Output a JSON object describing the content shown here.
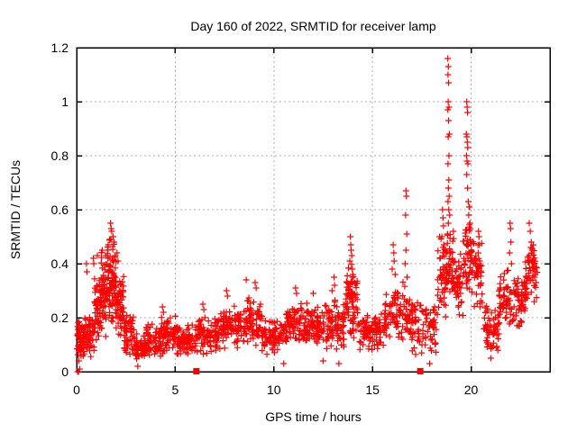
{
  "chart_data": {
    "type": "scatter",
    "title": "Day 160 of 2022, SRMTID for receiver lamp",
    "xlabel": "GPS time / hours",
    "ylabel": "SRMTID / TECUs",
    "xlim": [
      0,
      24
    ],
    "ylim": [
      0,
      1.2
    ],
    "xticks": {
      "values": [
        0,
        5,
        10,
        15,
        20
      ],
      "labels": [
        "0",
        "5",
        "10",
        "15",
        "20"
      ]
    },
    "yticks": {
      "values": [
        0,
        0.2,
        0.4,
        0.6,
        0.8,
        1.0,
        1.2
      ],
      "labels": [
        "0",
        "0.2",
        "0.4",
        "0.6",
        "0.8",
        "1",
        "1.2"
      ]
    },
    "grid": true,
    "legend": "none",
    "marker": "plus",
    "marker_size": 7,
    "marker_color": "#ff0000",
    "grid_color": "#b0b0b0",
    "border_color": "#000000",
    "seed": 160,
    "bands_comment": "dense noise bands estimated from pixels: [t_start,t_end,n_points,y_min,y_max]",
    "bands": [
      [
        0.02,
        0.35,
        50,
        0.02,
        0.22
      ],
      [
        0.35,
        0.9,
        60,
        0.05,
        0.22
      ],
      [
        0.9,
        1.2,
        45,
        0.1,
        0.38
      ],
      [
        1.2,
        1.5,
        55,
        0.12,
        0.46
      ],
      [
        1.5,
        2.0,
        90,
        0.15,
        0.5
      ],
      [
        2.0,
        2.4,
        55,
        0.12,
        0.38
      ],
      [
        2.4,
        2.9,
        50,
        0.06,
        0.24
      ],
      [
        2.9,
        3.5,
        55,
        0.03,
        0.15
      ],
      [
        3.5,
        4.3,
        70,
        0.05,
        0.19
      ],
      [
        4.3,
        5.1,
        70,
        0.06,
        0.21
      ],
      [
        5.1,
        6.0,
        75,
        0.05,
        0.18
      ],
      [
        6.0,
        7.2,
        90,
        0.06,
        0.21
      ],
      [
        7.2,
        8.3,
        85,
        0.08,
        0.25
      ],
      [
        8.3,
        9.4,
        85,
        0.09,
        0.29
      ],
      [
        9.4,
        10.6,
        90,
        0.06,
        0.2
      ],
      [
        10.6,
        11.6,
        80,
        0.08,
        0.26
      ],
      [
        11.6,
        12.6,
        80,
        0.08,
        0.26
      ],
      [
        12.6,
        13.6,
        80,
        0.07,
        0.28
      ],
      [
        13.6,
        14.25,
        70,
        0.12,
        0.42
      ],
      [
        14.25,
        15.6,
        90,
        0.07,
        0.22
      ],
      [
        15.6,
        16.35,
        55,
        0.1,
        0.32
      ],
      [
        16.35,
        16.9,
        40,
        0.1,
        0.35
      ],
      [
        16.9,
        18.3,
        90,
        0.05,
        0.28
      ],
      [
        18.3,
        18.75,
        45,
        0.18,
        0.52
      ],
      [
        18.75,
        19.15,
        45,
        0.25,
        0.55
      ],
      [
        19.15,
        19.6,
        40,
        0.18,
        0.45
      ],
      [
        19.6,
        20.05,
        50,
        0.28,
        0.58
      ],
      [
        20.05,
        20.6,
        45,
        0.22,
        0.5
      ],
      [
        20.6,
        21.4,
        60,
        0.07,
        0.25
      ],
      [
        21.4,
        22.2,
        60,
        0.13,
        0.4
      ],
      [
        22.2,
        22.75,
        45,
        0.15,
        0.38
      ],
      [
        22.75,
        23.35,
        55,
        0.22,
        0.48
      ]
    ],
    "points_comment": "notable individual points read off the plot: [hours, TECUs]",
    "points": [
      [
        0.05,
        0.0
      ],
      [
        0.1,
        0.0
      ],
      [
        0.15,
        0.01
      ],
      [
        0.5,
        0.4
      ],
      [
        0.52,
        0.37
      ],
      [
        0.85,
        0.42
      ],
      [
        0.87,
        0.4
      ],
      [
        1.05,
        0.43
      ],
      [
        1.3,
        0.45
      ],
      [
        1.6,
        0.47
      ],
      [
        1.68,
        0.49
      ],
      [
        1.72,
        0.55
      ],
      [
        1.75,
        0.53
      ],
      [
        1.78,
        0.52
      ],
      [
        1.85,
        0.5
      ],
      [
        1.9,
        0.48
      ],
      [
        2.05,
        0.44
      ],
      [
        2.1,
        0.41
      ],
      [
        3.1,
        0.02
      ],
      [
        4.35,
        0.24
      ],
      [
        4.4,
        0.22
      ],
      [
        6.4,
        0.25
      ],
      [
        6.45,
        0.23
      ],
      [
        7.6,
        0.3
      ],
      [
        7.65,
        0.28
      ],
      [
        8.6,
        0.34
      ],
      [
        9.05,
        0.33
      ],
      [
        9.1,
        0.31
      ],
      [
        10.5,
        0.03
      ],
      [
        11.1,
        0.31
      ],
      [
        11.15,
        0.29
      ],
      [
        12.0,
        0.29
      ],
      [
        12.5,
        0.04
      ],
      [
        12.95,
        0.3
      ],
      [
        13.05,
        0.35
      ],
      [
        13.08,
        0.32
      ],
      [
        13.3,
        0.03
      ],
      [
        13.85,
        0.41
      ],
      [
        13.88,
        0.5
      ],
      [
        13.9,
        0.47
      ],
      [
        13.92,
        0.45
      ],
      [
        13.95,
        0.43
      ],
      [
        13.98,
        0.38
      ],
      [
        14.0,
        0.36
      ],
      [
        16.0,
        0.38
      ],
      [
        16.05,
        0.47
      ],
      [
        16.08,
        0.44
      ],
      [
        16.1,
        0.41
      ],
      [
        16.15,
        0.36
      ],
      [
        16.66,
        0.4
      ],
      [
        16.68,
        0.58
      ],
      [
        16.7,
        0.67
      ],
      [
        16.7,
        0.45
      ],
      [
        16.72,
        0.65
      ],
      [
        16.74,
        0.51
      ],
      [
        16.76,
        0.35
      ],
      [
        17.9,
        0.03
      ],
      [
        18.52,
        0.5
      ],
      [
        18.55,
        0.6
      ],
      [
        18.58,
        0.57
      ],
      [
        18.6,
        0.54
      ],
      [
        18.62,
        0.47
      ],
      [
        18.8,
        0.51
      ],
      [
        18.82,
        1.16
      ],
      [
        18.82,
        0.97
      ],
      [
        18.83,
        1.1
      ],
      [
        18.83,
        0.77
      ],
      [
        18.83,
        0.63
      ],
      [
        18.84,
        1.0
      ],
      [
        18.84,
        0.87
      ],
      [
        18.85,
        1.13
      ],
      [
        18.85,
        0.68
      ],
      [
        18.85,
        0.55
      ],
      [
        18.86,
        1.07
      ],
      [
        18.86,
        0.93
      ],
      [
        18.87,
        0.71
      ],
      [
        18.87,
        0.6
      ],
      [
        18.88,
        0.98
      ],
      [
        18.88,
        0.8
      ],
      [
        18.89,
        0.65
      ],
      [
        18.9,
        0.88
      ],
      [
        18.91,
        0.58
      ],
      [
        19.76,
        0.88
      ],
      [
        19.77,
        0.8
      ],
      [
        19.78,
        1.0
      ],
      [
        19.78,
        0.73
      ],
      [
        19.79,
        0.87
      ],
      [
        19.8,
        0.98
      ],
      [
        19.8,
        0.78
      ],
      [
        19.81,
        0.85
      ],
      [
        19.82,
        0.96
      ],
      [
        19.82,
        0.68
      ],
      [
        19.83,
        0.83
      ],
      [
        19.84,
        0.77
      ],
      [
        19.86,
        0.63
      ],
      [
        19.88,
        0.58
      ],
      [
        19.9,
        0.61
      ],
      [
        19.92,
        0.61
      ],
      [
        19.94,
        0.55
      ],
      [
        20.36,
        0.44
      ],
      [
        20.38,
        0.52
      ],
      [
        20.4,
        0.5
      ],
      [
        20.42,
        0.47
      ],
      [
        20.44,
        0.41
      ],
      [
        21.0,
        0.05
      ],
      [
        21.95,
        0.44
      ],
      [
        21.98,
        0.55
      ],
      [
        22.0,
        0.53
      ],
      [
        22.02,
        0.48
      ],
      [
        22.05,
        0.4
      ],
      [
        22.95,
        0.55
      ],
      [
        23.0,
        0.52
      ],
      [
        23.05,
        0.48
      ],
      [
        23.1,
        0.45
      ],
      [
        23.15,
        0.42
      ],
      [
        23.2,
        0.4
      ],
      [
        23.25,
        0.36
      ],
      [
        23.3,
        0.33
      ]
    ],
    "squares_comment": "small filled red squares sitting on the x-axis",
    "squares": [
      [
        6.05,
        0.0
      ],
      [
        17.4,
        0.0
      ]
    ]
  }
}
